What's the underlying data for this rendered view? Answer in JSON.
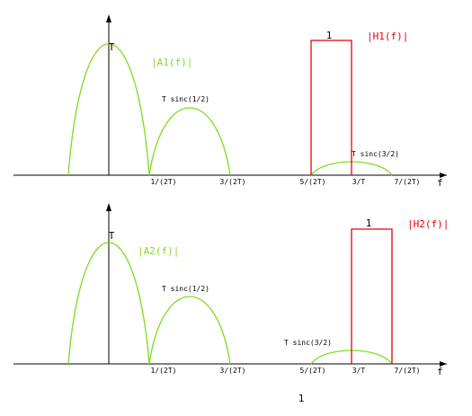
{
  "plots": [
    {
      "peak_label": "T",
      "magnitude_label": "|A1(f)|",
      "lobe2_label": "T sinc(1/2)",
      "lobe3_label": "T sinc(3/2)",
      "filter_height": "1",
      "filter_label": "|H1(f)|",
      "axis_label": "f",
      "ticks": [
        "1/(2T)",
        "3/(2T)",
        "5/(2T)",
        "3/T",
        "7/(2T)"
      ]
    },
    {
      "peak_label": "T",
      "magnitude_label": "|A2(f)|",
      "lobe2_label": "T sinc(1/2)",
      "lobe3_label": "T sinc(3/2)",
      "filter_height": "1",
      "filter_label": "|H2(f)|",
      "axis_label": "f",
      "ticks": [
        "1/(2T)",
        "3/(2T)",
        "5/(2T)",
        "3/T",
        "7/(2T)"
      ]
    }
  ],
  "footer": "1"
}
